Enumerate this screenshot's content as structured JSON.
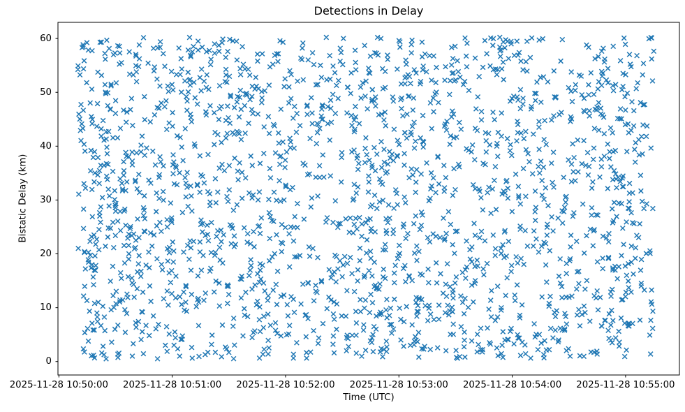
{
  "chart_data": {
    "type": "scatter",
    "title": "Detections in Delay",
    "xlabel": "Time (UTC)",
    "ylabel": "Bistatic Delay (km)",
    "x_tick_labels": [
      "2025-11-28 10:50:00",
      "2025-11-28 10:51:00",
      "2025-11-28 10:52:00",
      "2025-11-28 10:53:00",
      "2025-11-28 10:54:00",
      "2025-11-28 10:55:00"
    ],
    "x_tick_seconds": [
      0,
      60,
      120,
      180,
      240,
      300
    ],
    "y_tick_labels": [
      "0",
      "10",
      "20",
      "30",
      "40",
      "50",
      "60"
    ],
    "y_ticks": [
      0,
      10,
      20,
      30,
      40,
      50,
      60
    ],
    "x_axis_range_seconds": [
      -0.5,
      328.5
    ],
    "y_axis_range": [
      -2.5,
      63.0
    ],
    "x_data_range_seconds": [
      10,
      315
    ],
    "y_data_range": [
      0.5,
      60.3
    ],
    "n_points": 2000,
    "distribution": "uniform-random",
    "seed": 20251128,
    "marker": "x",
    "marker_color": "#1f77b4",
    "marker_size_px": 6.6,
    "marker_stroke_px": 1.5,
    "axis_color": "#000000",
    "background": "#ffffff",
    "grid": "off",
    "legend": "none"
  }
}
